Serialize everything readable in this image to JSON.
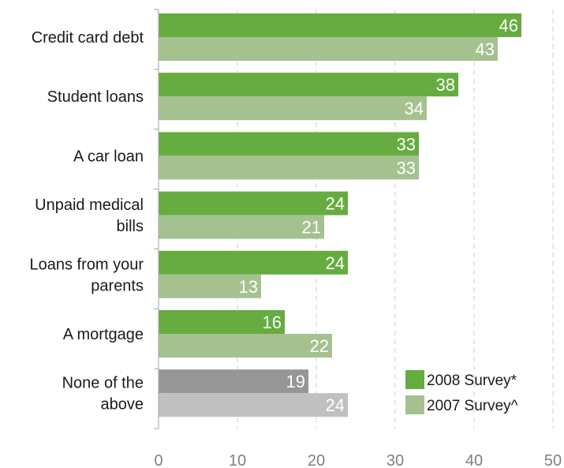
{
  "chart_data": {
    "type": "bar",
    "orientation": "horizontal",
    "categories": [
      [
        "Credit card debt"
      ],
      [
        "Student loans"
      ],
      [
        "A car loan"
      ],
      [
        "Unpaid medical",
        "bills"
      ],
      [
        "Loans from your",
        "parents"
      ],
      [
        "A mortgage"
      ],
      [
        "None of the",
        "above"
      ]
    ],
    "series": [
      {
        "name": "2008 Survey*",
        "values": [
          46,
          38,
          33,
          24,
          24,
          16,
          19
        ],
        "color": "#66ac40",
        "last_color": "#969696"
      },
      {
        "name": "2007 Survey^",
        "values": [
          43,
          34,
          33,
          21,
          13,
          22,
          24
        ],
        "color": "#a5c190",
        "last_color": "#c0c0c0"
      }
    ],
    "xlim": [
      0,
      50
    ],
    "xticks": [
      0,
      10,
      20,
      30,
      40,
      50
    ],
    "grid": "vertical-dashed",
    "legend_position": "bottom-right",
    "data_labels": true
  }
}
